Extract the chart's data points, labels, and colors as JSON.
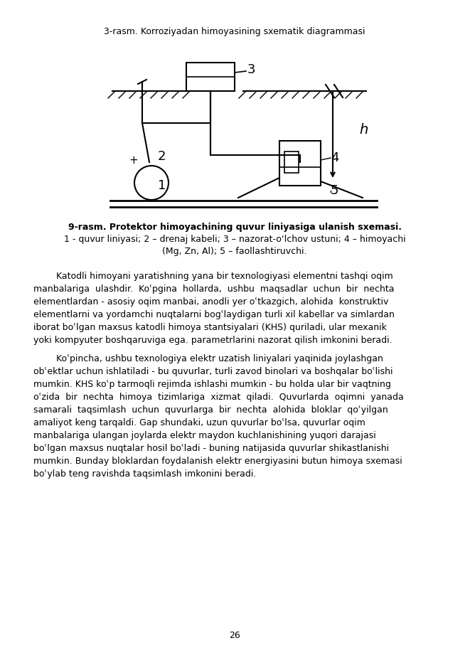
{
  "title_diagram": "3-rasm. Korroziyadan himoyasining sxematik diagrammasi",
  "caption_line1": "9-rasm. Protektor himoyachining quvur liniyasiga ulanish sxemasi.",
  "caption_line2": "1 - quvur liniyasi; 2 – drenaj kabeli; 3 – nazorat-oʻlchov ustuni; 4 – himoyachi",
  "caption_line3": "(Mg, Zn, Al); 5 – faollashtiruvchi.",
  "para1_lines": [
    "        Katodli himoyani yaratishning yana bir texnologiyasi elementni tashqi oqim",
    "manbalariga  ulashdir.  Koʿpgina  hollarda,  ushbu  maqsadlar  uchun  bir  nechta",
    "elementlardan - asosiy oqim manbai, anodli yer oʿtkazgich, alohida  konstruktiv",
    "elementlarni va yordamchi nuqtalarni bogʿlaydigan turli xil kabellar va simlardan",
    "iborat boʿlgan maxsus katodli himoya stantsiyalari (KHS) quriladi, ular mexanik",
    "yoki kompyuter boshqaruviga ega. parametrlarini nazorat qilish imkonini beradi."
  ],
  "para2_lines": [
    "        Koʿpincha, ushbu texnologiya elektr uzatish liniyalari yaqinida joylashgan",
    "obʿektlar uchun ishlatiladi - bu quvurlar, turli zavod binolari va boshqalar boʿlishi",
    "mumkin. KHS koʿp tarmoqli rejimda ishlashi mumkin - bu holda ular bir vaqtning",
    "oʿzida  bir  nechta  himoya  tizimlariga  xizmat  qiladi.  Quvurlarda  oqimni  yanada",
    "samarali  taqsimlash  uchun  quvurlarga  bir  nechta  alohida  bloklar  qoʿyilgan",
    "amaliyot keng tarqaldi. Gap shundaki, uzun quvurlar boʿlsa, quvurlar oqim",
    "manbalariga ulangan joylarda elektr maydon kuchlanishining yuqori darajasi",
    "boʿlgan maxsus nuqtalar hosil boʿladi - buning natijasida quvurlar shikastlanishi",
    "mumkin. Bunday bloklardan foydalanish elektr energiyasini butun himoya sxemasi",
    "boʿylab teng ravishda taqsimlash imkonini beradi."
  ],
  "page_number": "26",
  "bg_color": "#ffffff",
  "text_color": "#000000"
}
